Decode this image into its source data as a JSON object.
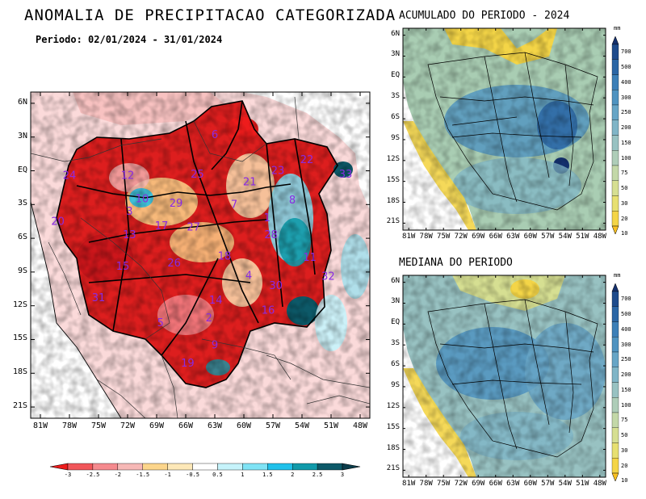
{
  "title": "ANOMALIA DE PRECIPITACAO CATEGORIZADA",
  "period": "Periodo: 02/01/2024 - 31/01/2024",
  "panel_acc_title": "ACUMULADO DO PERIODO - 2024",
  "panel_med_title": "MEDIANA DO PERIODO",
  "main_map": {
    "lat_labels": [
      "6N",
      "3N",
      "EQ",
      "3S",
      "6S",
      "9S",
      "12S",
      "15S",
      "18S",
      "21S"
    ],
    "lon_labels": [
      "81W",
      "78W",
      "75W",
      "72W",
      "69W",
      "66W",
      "63W",
      "60W",
      "57W",
      "54W",
      "51W",
      "48W"
    ],
    "basin_labels": [
      {
        "id": "1",
        "lon": -57.6,
        "lat": -4.5
      },
      {
        "id": "2",
        "lon": -63.6,
        "lat": -13.4
      },
      {
        "id": "3",
        "lon": -71.8,
        "lat": -3.9
      },
      {
        "id": "4",
        "lon": -59.5,
        "lat": -9.6
      },
      {
        "id": "5",
        "lon": -68.6,
        "lat": -13.8
      },
      {
        "id": "6",
        "lon": -63.0,
        "lat": 2.9
      },
      {
        "id": "7",
        "lon": -61.0,
        "lat": -3.3
      },
      {
        "id": "8",
        "lon": -55.0,
        "lat": -2.9
      },
      {
        "id": "9",
        "lon": -63.0,
        "lat": -15.8
      },
      {
        "id": "10",
        "lon": -70.5,
        "lat": -2.8
      },
      {
        "id": "11",
        "lon": -53.2,
        "lat": -8.0
      },
      {
        "id": "12",
        "lon": -72.0,
        "lat": -0.7
      },
      {
        "id": "13",
        "lon": -71.8,
        "lat": -6.0
      },
      {
        "id": "14",
        "lon": -62.9,
        "lat": -11.8
      },
      {
        "id": "15",
        "lon": -72.5,
        "lat": -8.8
      },
      {
        "id": "16",
        "lon": -57.5,
        "lat": -12.7
      },
      {
        "id": "17",
        "lon": -68.5,
        "lat": -5.2
      },
      {
        "id": "18",
        "lon": -62.0,
        "lat": -7.9
      },
      {
        "id": "19",
        "lon": -65.8,
        "lat": -17.4
      },
      {
        "id": "20",
        "lon": -79.2,
        "lat": -4.8
      },
      {
        "id": "21",
        "lon": -59.4,
        "lat": -1.3
      },
      {
        "id": "22",
        "lon": -53.5,
        "lat": 0.7
      },
      {
        "id": "23",
        "lon": -56.5,
        "lat": -0.3
      },
      {
        "id": "24",
        "lon": -78.0,
        "lat": -0.7
      },
      {
        "id": "25",
        "lon": -64.8,
        "lat": -0.6
      },
      {
        "id": "26",
        "lon": -67.2,
        "lat": -8.5
      },
      {
        "id": "27",
        "lon": -65.2,
        "lat": -5.3
      },
      {
        "id": "28",
        "lon": -57.2,
        "lat": -6.0
      },
      {
        "id": "29",
        "lon": -67.0,
        "lat": -3.2
      },
      {
        "id": "30",
        "lon": -56.7,
        "lat": -10.5
      },
      {
        "id": "31",
        "lon": -75.0,
        "lat": -11.6
      },
      {
        "id": "32",
        "lon": -51.3,
        "lat": -9.7
      },
      {
        "id": "33",
        "lon": -49.5,
        "lat": -0.6
      }
    ]
  },
  "side_map": {
    "lat_labels": [
      "6N",
      "3N",
      "EQ",
      "3S",
      "6S",
      "9S",
      "12S",
      "15S",
      "18S",
      "21S"
    ],
    "lon_labels": [
      "81W",
      "78W",
      "75W",
      "72W",
      "69W",
      "66W",
      "63W",
      "60W",
      "57W",
      "54W",
      "51W",
      "48W"
    ]
  },
  "anomaly_colorbar": {
    "labels": [
      "-3",
      "-2.5",
      "-2",
      "-1.5",
      "-1",
      "-0.5",
      "0.5",
      "1",
      "1.5",
      "2",
      "2.5",
      "3"
    ],
    "colors": [
      "#ee1c1c",
      "#f1565a",
      "#f58a8e",
      "#f6b8b6",
      "#fcd58b",
      "#fde8b8",
      "#ffffff",
      "#c6f3fb",
      "#7fe3f5",
      "#21c1ea",
      "#119aaa",
      "#0d5968",
      "#0b3c4a"
    ]
  },
  "mm_colorbar": {
    "unit": "mm",
    "labels": [
      "700",
      "500",
      "400",
      "300",
      "250",
      "200",
      "150",
      "100",
      "75",
      "50",
      "30",
      "20",
      "10"
    ],
    "colors": [
      "#14306e",
      "#1e4b8c",
      "#2b66a5",
      "#3c7fb7",
      "#4f93c0",
      "#67a5c6",
      "#80b5c7",
      "#98c2c2",
      "#aecdb8",
      "#c3d8a8",
      "#d6df92",
      "#e7e071",
      "#f4d547",
      "#f9c020"
    ]
  },
  "colors": {
    "ocean": "#ffffff",
    "land_outside": "#fbdada",
    "strong_dry": "#dd1e1e",
    "acc_base": "#9cc5be",
    "med_base": "#8fbcbe"
  }
}
